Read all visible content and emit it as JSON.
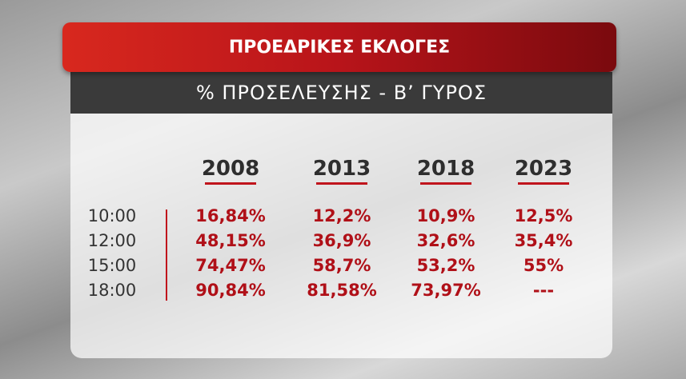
{
  "header": {
    "title": "ΠΡΟΕΔΡΙΚΕΣ ΕΚΛΟΓΕΣ",
    "subtitle": "% ΠΡΟΣΕΛΕΥΣΗΣ - Β’ ΓΥΡΟΣ"
  },
  "table": {
    "columns": [
      "2008",
      "2013",
      "2018",
      "2023"
    ],
    "rows": [
      {
        "time": "10:00",
        "cells": [
          "16,84%",
          "12,2%",
          "10,9%",
          "12,5%"
        ]
      },
      {
        "time": "12:00",
        "cells": [
          "48,15%",
          "36,9%",
          "32,6%",
          "35,4%"
        ]
      },
      {
        "time": "15:00",
        "cells": [
          "74,47%",
          "58,7%",
          "53,2%",
          "55%"
        ]
      },
      {
        "time": "18:00",
        "cells": [
          "90,84%",
          "81,58%",
          "73,97%",
          "---"
        ]
      }
    ]
  }
}
